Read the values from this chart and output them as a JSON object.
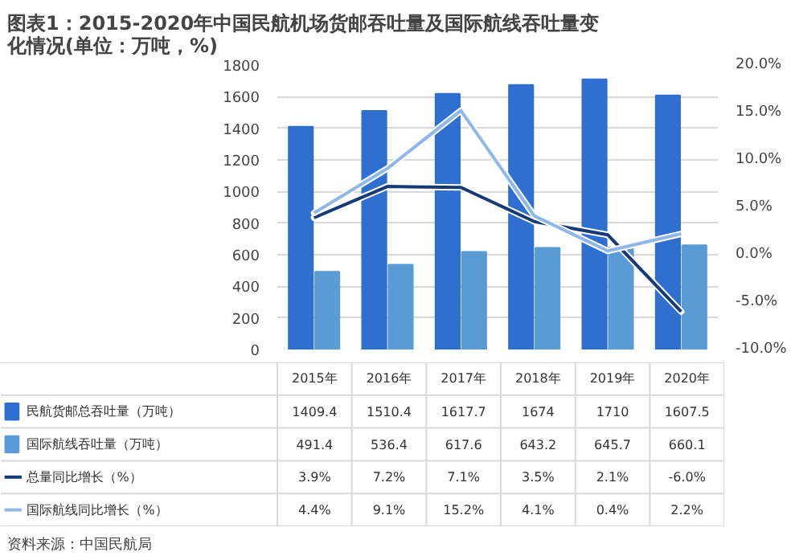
{
  "chart_data": {
    "type": "bar",
    "title": "图表1：2015-2020年中国民航机场货邮吞吐量及国际航线吞吐量变化情况(单位：万吨，%)",
    "categories": [
      "2015年",
      "2016年",
      "2017年",
      "2018年",
      "2019年",
      "2020年"
    ],
    "series": [
      {
        "name": "民航货邮总吞吐量（万吨）",
        "color": "#2f6fd0",
        "values": [
          1409.4,
          1510.4,
          1617.7,
          1674,
          1710,
          1607.5
        ],
        "value_labels": [
          "1409.4",
          "1510.4",
          "1617.7",
          "1674",
          "1710",
          "1607.5"
        ]
      },
      {
        "name": "国际航线吞吐量（万吨）",
        "color": "#5b9bd5",
        "values": [
          491.4,
          536.4,
          617.6,
          643.2,
          645.7,
          660.1
        ],
        "value_labels": [
          "491.4",
          "536.4",
          "617.6",
          "643.2",
          "645.7",
          "660.1"
        ]
      },
      {
        "name": "总量同比增长（%）",
        "type": "line",
        "axis": "y2",
        "color": "#163a75",
        "values": [
          3.9,
          7.2,
          7.1,
          3.5,
          2.1,
          -6.0
        ],
        "value_labels": [
          "3.9%",
          "7.2%",
          "7.1%",
          "3.5%",
          "2.1%",
          "-6.0%"
        ]
      },
      {
        "name": "国际航线同比增长（%）",
        "type": "line",
        "axis": "y2",
        "color": "#8fb8e8",
        "values": [
          4.4,
          9.1,
          15.2,
          4.1,
          0.4,
          2.2
        ],
        "value_labels": [
          "4.4%",
          "9.1%",
          "15.2%",
          "4.1%",
          "0.4%",
          "2.2%"
        ]
      }
    ],
    "ylim": [
      0,
      1800
    ],
    "yticks": [
      0,
      200,
      400,
      600,
      800,
      1000,
      1200,
      1400,
      1600,
      1800
    ],
    "y2lim": [
      -10,
      20
    ],
    "y2ticks": [
      {
        "value": -10,
        "label": "-10.0%"
      },
      {
        "value": -5,
        "label": "-5.0%"
      },
      {
        "value": 0,
        "label": "0.0%"
      },
      {
        "value": 5,
        "label": "5.0%"
      },
      {
        "value": 10,
        "label": "10.0%"
      },
      {
        "value": 15,
        "label": "15.0%"
      },
      {
        "value": 20,
        "label": "20.0%"
      }
    ],
    "grid": "y",
    "legend": "bottom",
    "marker": "none",
    "line_style": "solid",
    "annotations": [
      "资料来源：中国民航局"
    ]
  }
}
